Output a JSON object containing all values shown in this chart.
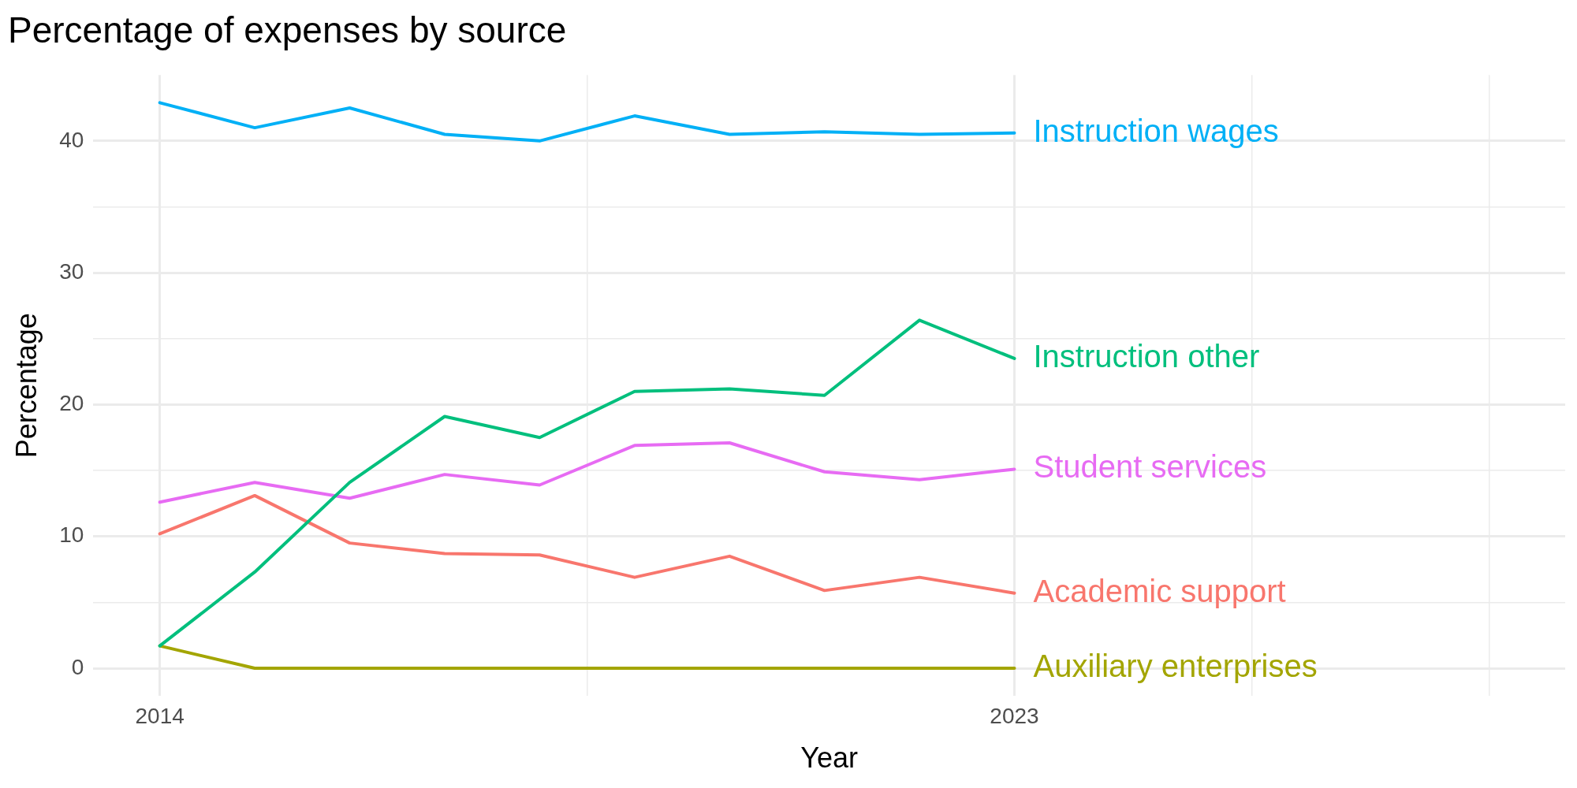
{
  "chart_data": {
    "type": "line",
    "title": "Percentage of expenses by source",
    "xlabel": "Year",
    "ylabel": "Percentage",
    "x": [
      2014,
      2015,
      2016,
      2017,
      2018,
      2019,
      2020,
      2021,
      2022,
      2023
    ],
    "series": [
      {
        "name": "Instruction wages",
        "color": "#00b0f6",
        "values": [
          42.9,
          41.0,
          42.5,
          40.5,
          40.0,
          41.9,
          40.5,
          40.7,
          40.5,
          40.6
        ]
      },
      {
        "name": "Instruction other",
        "color": "#00bf7d",
        "values": [
          1.7,
          7.3,
          14.1,
          19.1,
          17.5,
          21.0,
          21.2,
          20.7,
          26.4,
          23.5
        ]
      },
      {
        "name": "Student services",
        "color": "#e76bf3",
        "values": [
          12.6,
          14.1,
          12.9,
          14.7,
          13.9,
          16.9,
          17.1,
          14.9,
          14.3,
          15.1
        ]
      },
      {
        "name": "Academic support",
        "color": "#f8766d",
        "values": [
          10.2,
          13.1,
          9.5,
          8.7,
          8.6,
          6.9,
          8.5,
          5.9,
          6.9,
          5.7
        ]
      },
      {
        "name": "Auxiliary enterprises",
        "color": "#a3a500",
        "values": [
          1.7,
          0,
          0,
          0,
          0,
          0,
          0,
          0,
          0,
          0
        ]
      }
    ],
    "xlim": [
      2013.3,
      2028.8
    ],
    "xticks": [
      2014,
      {
        "value": 2018.5,
        "label": null
      },
      2023,
      {
        "value": 2025.5,
        "label": null
      },
      {
        "value": 2028,
        "label": null
      }
    ],
    "ylim": [
      -2.1,
      45
    ],
    "yticks": [
      0,
      {
        "value": 5,
        "label": null
      },
      10,
      {
        "value": 15,
        "label": null
      },
      20,
      {
        "value": 25,
        "label": null
      },
      30,
      {
        "value": 35,
        "label": null
      },
      40
    ],
    "grid": true,
    "legend": false,
    "marker": "none",
    "line_style": "solid"
  }
}
